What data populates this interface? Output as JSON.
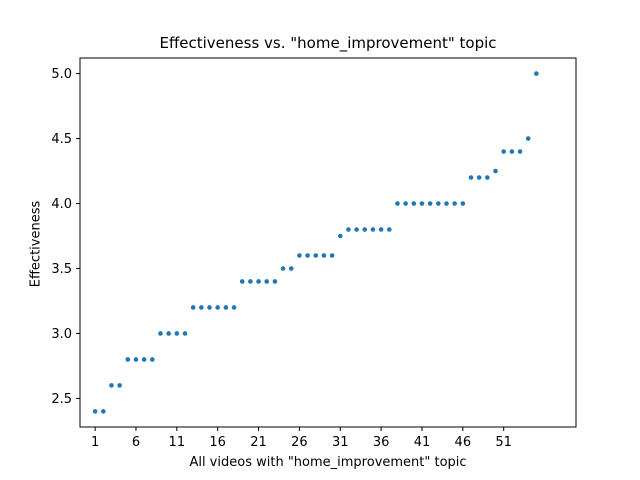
{
  "chart_data": {
    "type": "scatter",
    "title": "Effectiveness vs. \"home_improvement\" topic",
    "xlabel": "All videos with \"home_improvement\" topic",
    "ylabel": "Effectiveness",
    "xlim": [
      -1.85,
      58.85
    ],
    "ylim": [
      2.28,
      5.12
    ],
    "xticks": [
      0,
      5,
      10,
      15,
      20,
      25,
      30,
      35,
      40,
      45,
      50
    ],
    "xtick_labels": [
      "1",
      "6",
      "11",
      "16",
      "21",
      "26",
      "31",
      "36",
      "41",
      "46",
      "51"
    ],
    "yticks": [
      2.5,
      3.0,
      3.5,
      4.0,
      4.5,
      5.0
    ],
    "ytick_labels": [
      "2.5",
      "3.0",
      "3.5",
      "4.0",
      "4.5",
      "5.0"
    ],
    "grid": false,
    "marker_color": "#1f77b4",
    "series": [
      {
        "x": [
          0,
          1,
          2,
          3,
          4,
          5,
          6,
          7,
          8,
          9,
          10,
          11,
          12,
          13,
          14,
          15,
          16,
          17,
          18,
          19,
          20,
          21,
          22,
          23,
          24,
          25,
          26,
          27,
          28,
          29,
          30,
          31,
          32,
          33,
          34,
          35,
          36,
          37,
          38,
          39,
          40,
          41,
          42,
          43,
          44,
          45,
          46,
          47,
          48,
          49,
          50,
          51,
          52,
          53,
          54
        ],
        "y": [
          2.4,
          2.4,
          2.6,
          2.6,
          2.8,
          2.8,
          2.8,
          2.8,
          3.0,
          3.0,
          3.0,
          3.0,
          3.2,
          3.2,
          3.2,
          3.2,
          3.2,
          3.2,
          3.4,
          3.4,
          3.4,
          3.4,
          3.4,
          3.5,
          3.5,
          3.6,
          3.6,
          3.6,
          3.6,
          3.6,
          3.75,
          3.8,
          3.8,
          3.8,
          3.8,
          3.8,
          3.8,
          4.0,
          4.0,
          4.0,
          4.0,
          4.0,
          4.0,
          4.0,
          4.0,
          4.0,
          4.2,
          4.2,
          4.2,
          4.25,
          4.4,
          4.4,
          4.4,
          4.5,
          5.0
        ]
      }
    ]
  }
}
